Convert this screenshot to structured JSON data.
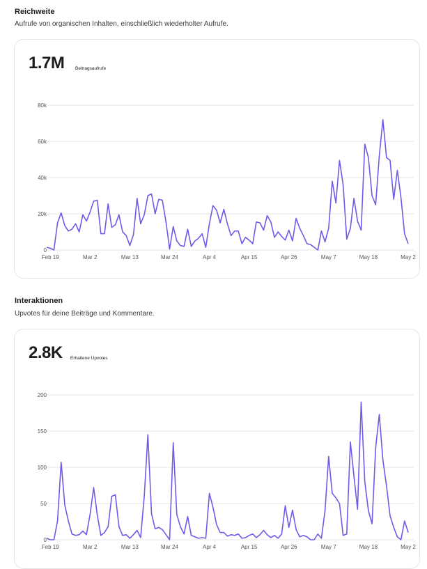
{
  "sections": [
    {
      "title": "Reichweite",
      "description": "Aufrufe von organischen Inhalten, einschließlich wiederholter Aufrufe.",
      "big_number": "1.7M",
      "big_label": "Beitragsaufrufe"
    },
    {
      "title": "Interaktionen",
      "description": "Upvotes für deine Beiträge und Kommentare.",
      "big_number": "2.8K",
      "big_label": "Erhaltene Upvotes"
    }
  ],
  "colors": {
    "line": "#6c5ce7",
    "grid": "#e6e6e6",
    "axis_text": "#555555"
  },
  "chart_data": [
    {
      "type": "line",
      "title": "",
      "xlabel": "",
      "ylabel": "",
      "ylim": [
        0,
        80000
      ],
      "grid": true,
      "y_ticks": [
        0,
        20000,
        40000,
        60000,
        80000
      ],
      "y_tick_labels": [
        "0",
        "20k",
        "40k",
        "60k",
        "80k"
      ],
      "x_tick_labels": [
        "Feb 19",
        "Mar 2",
        "Mar 13",
        "Mar 24",
        "Apr 4",
        "Apr 15",
        "Apr 26",
        "May 7",
        "May 18",
        "May 2"
      ],
      "x_tick_index": [
        1,
        12,
        23,
        34,
        45,
        56,
        67,
        78,
        89,
        100
      ],
      "series": [
        {
          "values": [
            1500,
            1000,
            0,
            15000,
            20500,
            13500,
            10500,
            11500,
            14500,
            10000,
            19500,
            16000,
            21000,
            27000,
            27500,
            9000,
            9000,
            25500,
            12500,
            14000,
            19500,
            10000,
            8000,
            2500,
            8500,
            28500,
            14500,
            19500,
            30000,
            31000,
            20000,
            28000,
            27500,
            15500,
            500,
            13000,
            5000,
            2500,
            2000,
            11500,
            2000,
            5000,
            6500,
            9000,
            1500,
            14500,
            24500,
            22000,
            15000,
            22500,
            14500,
            8000,
            10500,
            10500,
            3500,
            7000,
            5500,
            3500,
            15500,
            15000,
            11000,
            19000,
            15500,
            7000,
            10000,
            7500,
            5500,
            11000,
            5000,
            17500,
            12000,
            8000,
            3500,
            3000,
            1500,
            0,
            10500,
            4500,
            12000,
            38000,
            26000,
            49500,
            36000,
            6000,
            12000,
            28500,
            16000,
            11000,
            58500,
            51000,
            30000,
            25000,
            52000,
            72000,
            51000,
            49500,
            28000,
            44000,
            29000,
            9000,
            3500
          ]
        }
      ]
    },
    {
      "type": "line",
      "title": "",
      "xlabel": "",
      "ylabel": "",
      "ylim": [
        0,
        200
      ],
      "grid": true,
      "y_ticks": [
        0,
        50,
        100,
        150,
        200
      ],
      "y_tick_labels": [
        "0",
        "50",
        "100",
        "150",
        "200"
      ],
      "x_tick_labels": [
        "Feb 19",
        "Mar 2",
        "Mar 13",
        "Mar 24",
        "Apr 4",
        "Apr 15",
        "Apr 26",
        "May 7",
        "May 18",
        "May 2"
      ],
      "x_tick_index": [
        1,
        12,
        23,
        34,
        45,
        56,
        67,
        78,
        89,
        100
      ],
      "series": [
        {
          "values": [
            2,
            0,
            0,
            26,
            107,
            48,
            26,
            8,
            6,
            7,
            12,
            7,
            35,
            72,
            34,
            6,
            10,
            18,
            60,
            62,
            18,
            6,
            7,
            2,
            7,
            13,
            3,
            60,
            145,
            36,
            15,
            17,
            14,
            7,
            0,
            134,
            35,
            18,
            8,
            32,
            6,
            4,
            2,
            3,
            2,
            64,
            45,
            21,
            10,
            10,
            5,
            7,
            6,
            8,
            2,
            3,
            6,
            8,
            3,
            7,
            13,
            7,
            3,
            6,
            2,
            8,
            47,
            17,
            41,
            14,
            4,
            6,
            4,
            0,
            0,
            8,
            2,
            40,
            115,
            64,
            58,
            50,
            6,
            8,
            135,
            88,
            42,
            190,
            80,
            40,
            22,
            127,
            173,
            110,
            74,
            33,
            17,
            4,
            0,
            26,
            10
          ]
        }
      ]
    }
  ]
}
